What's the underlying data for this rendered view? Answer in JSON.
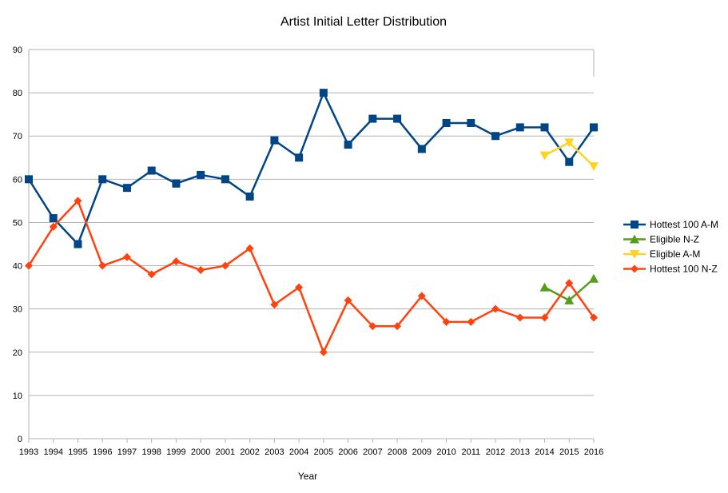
{
  "chart_data": {
    "type": "line",
    "title": "Artist Initial Letter Distribution",
    "xlabel": "Year",
    "ylabel": "",
    "ylim": [
      0,
      90
    ],
    "yticks": [
      0,
      10,
      20,
      30,
      40,
      50,
      60,
      70,
      80,
      90
    ],
    "grid": true,
    "legend_position": "right",
    "x": [
      1993,
      1994,
      1995,
      1996,
      1997,
      1998,
      1999,
      2000,
      2001,
      2002,
      2003,
      2004,
      2005,
      2006,
      2007,
      2008,
      2009,
      2010,
      2011,
      2012,
      2013,
      2014,
      2015,
      2016
    ],
    "series": [
      {
        "name": "Hottest 100 A-M",
        "color": "#004586",
        "marker": "square",
        "values": [
          60,
          51,
          45,
          60,
          58,
          62,
          59,
          61,
          60,
          56,
          69,
          65,
          80,
          68,
          74,
          74,
          67,
          73,
          73,
          70,
          72,
          72,
          64,
          72
        ]
      },
      {
        "name": "Eligible N-Z",
        "color": "#579d1c",
        "marker": "triangle-up",
        "values": [
          null,
          null,
          null,
          null,
          null,
          null,
          null,
          null,
          null,
          null,
          null,
          null,
          null,
          null,
          null,
          null,
          null,
          null,
          null,
          null,
          null,
          35,
          32,
          37
        ]
      },
      {
        "name": "Eligible A-M",
        "color": "#ffd320",
        "marker": "triangle-down",
        "values": [
          null,
          null,
          null,
          null,
          null,
          null,
          null,
          null,
          null,
          null,
          null,
          null,
          null,
          null,
          null,
          null,
          null,
          null,
          null,
          null,
          null,
          65.5,
          68.5,
          63
        ]
      },
      {
        "name": "Hottest 100 N-Z",
        "color": "#ff420e",
        "marker": "diamond",
        "values": [
          40,
          49,
          55,
          40,
          42,
          38,
          41,
          39,
          40,
          44,
          31,
          35,
          20,
          32,
          26,
          26,
          33,
          27,
          27,
          30,
          28,
          28,
          36,
          28
        ]
      }
    ]
  }
}
